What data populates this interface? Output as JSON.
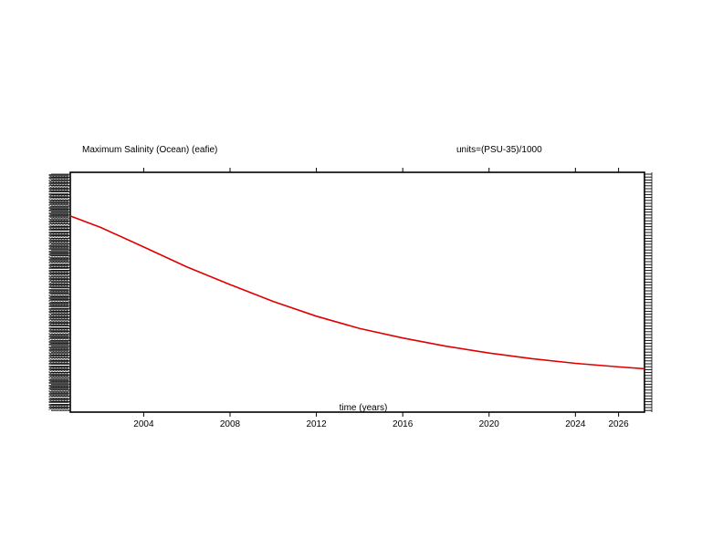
{
  "chart_data": {
    "type": "line",
    "title": "Maximum Salinity (Ocean) (eafie)",
    "units_label": "units=(PSU-35)/1000",
    "xlabel": "time (years)",
    "ylabel": "",
    "xlim": [
      2000.6,
      2027.2
    ],
    "ylim": [
      -0.016,
      0.072
    ],
    "x_ticks": [
      2004,
      2008,
      2012,
      2016,
      2020,
      2024,
      2026
    ],
    "x_tick_labels": [
      "2004",
      "2008",
      "2012",
      "2016",
      "2020",
      "2024",
      "2026"
    ],
    "y_tick_labels": [],
    "grid": false,
    "legend": "none",
    "series": [
      {
        "color": "#e00000",
        "x": [
          2000.6,
          2002,
          2004,
          2006,
          2008,
          2010,
          2012,
          2014,
          2016,
          2018,
          2020,
          2022,
          2024,
          2026,
          2027.2
        ],
        "y": [
          0.056,
          0.0518,
          0.0446,
          0.0373,
          0.0308,
          0.0246,
          0.0192,
          0.0147,
          0.0112,
          0.0082,
          0.0057,
          0.0036,
          0.0019,
          0.0006,
          -0.0001
        ]
      }
    ]
  }
}
